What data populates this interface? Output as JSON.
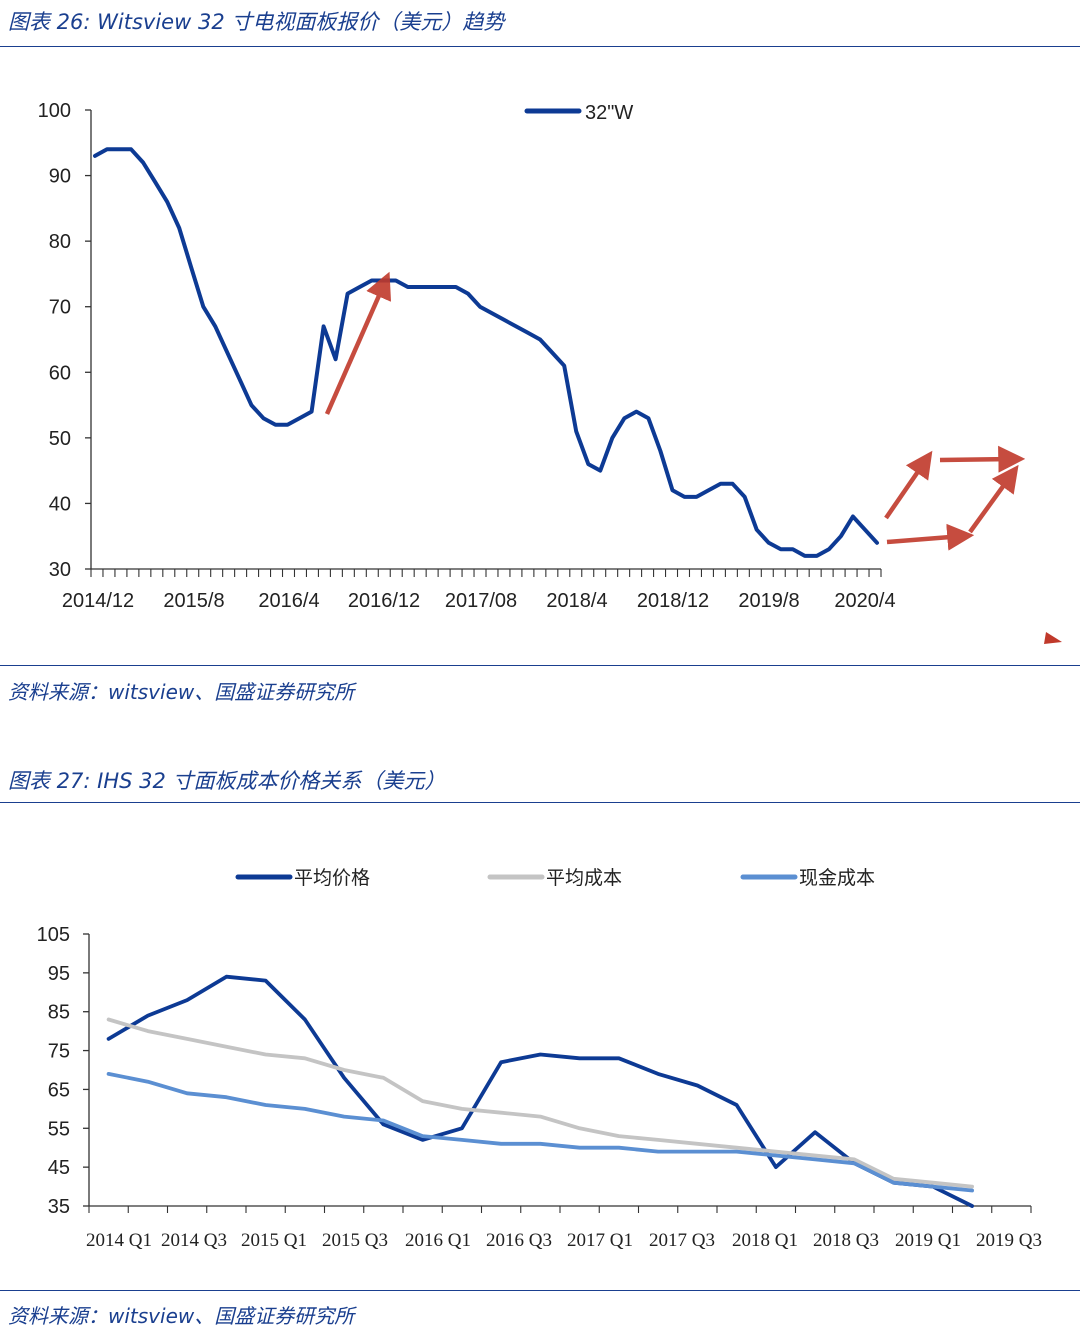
{
  "figure1": {
    "title": "图表 26:  Witsview 32 寸电视面板报价（美元）趋势",
    "source": "资料来源：witsview、国盛证券研究所"
  },
  "figure2": {
    "title": "图表 27:  IHS 32 寸面板成本价格关系（美元）",
    "source": "资料来源：witsview、国盛证券研究所"
  },
  "chart_data": [
    {
      "type": "line",
      "title": "Witsview 32 寸电视面板报价（美元）趋势",
      "ylim": [
        30,
        100
      ],
      "yticks": [
        30,
        40,
        50,
        60,
        70,
        80,
        90,
        100
      ],
      "xtick_labels": [
        "2014/12",
        "2015/8",
        "2016/4",
        "2016/12",
        "2017/08",
        "2018/4",
        "2018/12",
        "2019/8",
        "2020/4"
      ],
      "legend_position": "top",
      "grid": false,
      "series": [
        {
          "name": "32\"W",
          "color": "#0d3a94",
          "values": [
            93,
            94,
            94,
            94,
            92,
            89,
            86,
            82,
            76,
            70,
            67,
            63,
            59,
            55,
            53,
            52,
            52,
            53,
            54,
            67,
            62,
            72,
            73,
            74,
            74,
            74,
            73,
            73,
            73,
            73,
            73,
            72,
            70,
            69,
            68,
            67,
            66,
            65,
            63,
            61,
            51,
            46,
            45,
            50,
            53,
            54,
            53,
            48,
            42,
            41,
            41,
            42,
            43,
            43,
            41,
            36,
            34,
            33,
            33,
            32,
            32,
            33,
            35,
            38,
            36,
            34
          ]
        }
      ],
      "annotations": "red trend arrows"
    },
    {
      "type": "line",
      "title": "IHS 32 寸面板成本价格关系（美元）",
      "ylim": [
        35,
        105
      ],
      "yticks": [
        35,
        45,
        55,
        65,
        75,
        85,
        95,
        105
      ],
      "categories": [
        "2014 Q1",
        "2014 Q2",
        "2014 Q3",
        "2014 Q4",
        "2015 Q1",
        "2015 Q2",
        "2015 Q3",
        "2015 Q4",
        "2016 Q1",
        "2016 Q2",
        "2016 Q3",
        "2016 Q4",
        "2017 Q1",
        "2017 Q2",
        "2017 Q3",
        "2017 Q4",
        "2018 Q1",
        "2018 Q2",
        "2018 Q3",
        "2018 Q4",
        "2019 Q1",
        "2019 Q2",
        "2019 Q3",
        "2019 Q4"
      ],
      "tick_labels": [
        "2014 Q1",
        "2014 Q3",
        "2015 Q1",
        "2015 Q3",
        "2016 Q1",
        "2016 Q3",
        "2017 Q1",
        "2017 Q3",
        "2018 Q1",
        "2018 Q3",
        "2019 Q1",
        "2019 Q3"
      ],
      "legend_position": "top",
      "grid": false,
      "series": [
        {
          "name": "平均价格",
          "color": "#0d3a94",
          "values": [
            78,
            84,
            88,
            94,
            93,
            83,
            68,
            56,
            52,
            55,
            72,
            74,
            73,
            73,
            69,
            66,
            61,
            45,
            54,
            46,
            41,
            40,
            35,
            null
          ]
        },
        {
          "name": "平均成本",
          "color": "#c4c4c4",
          "values": [
            83,
            80,
            78,
            76,
            74,
            73,
            70,
            68,
            62,
            60,
            59,
            58,
            55,
            53,
            52,
            51,
            50,
            49,
            48,
            47,
            42,
            41,
            40,
            null
          ]
        },
        {
          "name": "现金成本",
          "color": "#5b8fd2",
          "values": [
            69,
            67,
            64,
            63,
            61,
            60,
            58,
            57,
            53,
            52,
            51,
            51,
            50,
            50,
            49,
            49,
            49,
            48,
            47,
            46,
            41,
            40,
            39,
            null
          ]
        }
      ]
    }
  ]
}
